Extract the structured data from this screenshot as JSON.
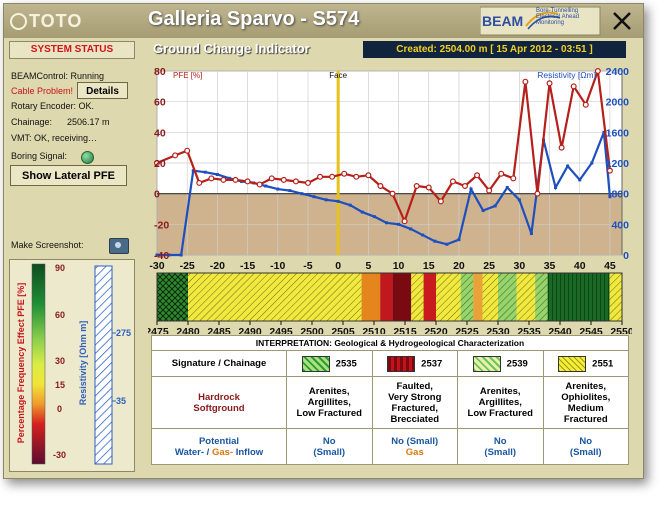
{
  "window": {
    "logo": "TOTO",
    "title": "Galleria Sparvo - S574",
    "beam_logo": "BEAM",
    "beam_subtitle": "Bore-Tunnelling Electrical Ahead Monitoring"
  },
  "system_status": {
    "header": "SYSTEM STATUS",
    "beam_control": "BEAMControl: Running",
    "cable_problem": "Cable Problem!",
    "details_button": "Details",
    "rotary_encoder": "Rotary Encoder: OK.",
    "chainage_label": "Chainage:",
    "chainage_value": "2506.17 m",
    "vmt": "VMT: OK, receiving…",
    "boring_signal": "Boring Signal:",
    "show_lateral_button": "Show Lateral PFE",
    "make_screenshot": "Make Screenshot:"
  },
  "left_legend": {
    "pfe_label": "Percentage Frequency Effect PFE [%]",
    "pfe_ticks": [
      "90",
      "60",
      "30",
      "15",
      "0",
      "-30"
    ],
    "res_label": "Resistivity [Ohm m]",
    "res_ticks": [
      "275",
      "35"
    ]
  },
  "panel": {
    "title": "Ground Change Indicator",
    "created": "Created: 2504.00 m    [ 15 Apr 2012 - 03:51 ]"
  },
  "chart_data": {
    "type": "line",
    "left_axis_label": "PFE [%]",
    "right_axis_label": "Resistivity [Ωm]",
    "face_label": "Face",
    "face_x": 0,
    "x_ticks": [
      -30,
      -25,
      -20,
      -15,
      -10,
      -5,
      0,
      5,
      10,
      15,
      20,
      25,
      30,
      35,
      40,
      45
    ],
    "y_left_ticks": [
      80,
      60,
      40,
      20,
      0,
      -20,
      -40
    ],
    "y_right_ticks": [
      2400,
      2000,
      1600,
      1200,
      800,
      400,
      0
    ],
    "ylim_left": [
      -40,
      80
    ],
    "ylim_right": [
      0,
      2400
    ],
    "xlim": [
      -30,
      47
    ],
    "chainage_ticks": [
      2475,
      2480,
      2485,
      2490,
      2495,
      2500,
      2505,
      2510,
      2515,
      2520,
      2525,
      2530,
      2535,
      2540,
      2545,
      2550
    ],
    "series": [
      {
        "name": "PFE [%]",
        "color": "#b5201a",
        "x": [
          -30,
          -27,
          -25,
          -23,
          -21,
          -19,
          -17,
          -15,
          -13,
          -11,
          -9,
          -7,
          -5,
          -3,
          -1,
          1,
          3,
          5,
          7,
          9,
          11,
          13,
          15,
          17,
          19,
          21,
          23,
          25,
          27,
          29,
          31,
          33,
          35,
          37,
          39,
          41,
          43,
          45
        ],
        "y": [
          20,
          25,
          28,
          7,
          10,
          9,
          9,
          8,
          6,
          10,
          9,
          8,
          7,
          11,
          11,
          13,
          11,
          12,
          5,
          0,
          -18,
          5,
          4,
          -5,
          8,
          5,
          12,
          2,
          13,
          10,
          73,
          0,
          72,
          30,
          70,
          58,
          80,
          15
        ]
      },
      {
        "name": "Resistivity [Ωm]",
        "color": "#1e4fbf",
        "x": [
          -30,
          -28,
          -26,
          -24,
          -22,
          -20,
          -18,
          -16,
          -14,
          -12,
          -10,
          -8,
          -6,
          -4,
          -2,
          0,
          2,
          4,
          6,
          8,
          10,
          12,
          14,
          16,
          18,
          20,
          22,
          24,
          26,
          28,
          30,
          32,
          34,
          36,
          38,
          40,
          42,
          44,
          45
        ],
        "y": [
          0,
          0,
          0,
          1100,
          1080,
          1050,
          1000,
          960,
          940,
          900,
          860,
          840,
          800,
          760,
          720,
          700,
          650,
          560,
          500,
          420,
          400,
          340,
          260,
          180,
          140,
          200,
          860,
          580,
          640,
          880,
          720,
          280,
          1500,
          880,
          1160,
          980,
          1200,
          1600,
          760
        ]
      }
    ],
    "bottom_axis_label": "Chainage"
  },
  "interpretation": {
    "title": "INTERPRETATION: Geological & Hydrogeological Characterization",
    "row_signature_label": "Signature / Chainage",
    "signatures": [
      "2535",
      "2537",
      "2539",
      "2551"
    ],
    "row_rock_label_1": "Hardrock",
    "row_rock_label_2": "Softground",
    "rock": [
      [
        "Arenites,",
        "Argillites,",
        "Low Fractured"
      ],
      [
        "Faulted,",
        "Very Strong",
        "Fractured,",
        "Brecciated"
      ],
      [
        "Arenites,",
        "Argillites,",
        "Low Fractured"
      ],
      [
        "Arenites,",
        "Ophiolites,",
        "Medium",
        "Fractured"
      ]
    ],
    "row_inflow_label_1": "Potential",
    "row_inflow_water": "Water-",
    "row_inflow_sep": " / ",
    "row_inflow_gas": "Gas-",
    "row_inflow_suffix": " Inflow",
    "inflow": [
      [
        "No",
        "(Small)"
      ],
      [
        "No (Small)",
        "Gas"
      ],
      [
        "No",
        "(Small)"
      ],
      [
        "No",
        "(Small)"
      ]
    ]
  }
}
